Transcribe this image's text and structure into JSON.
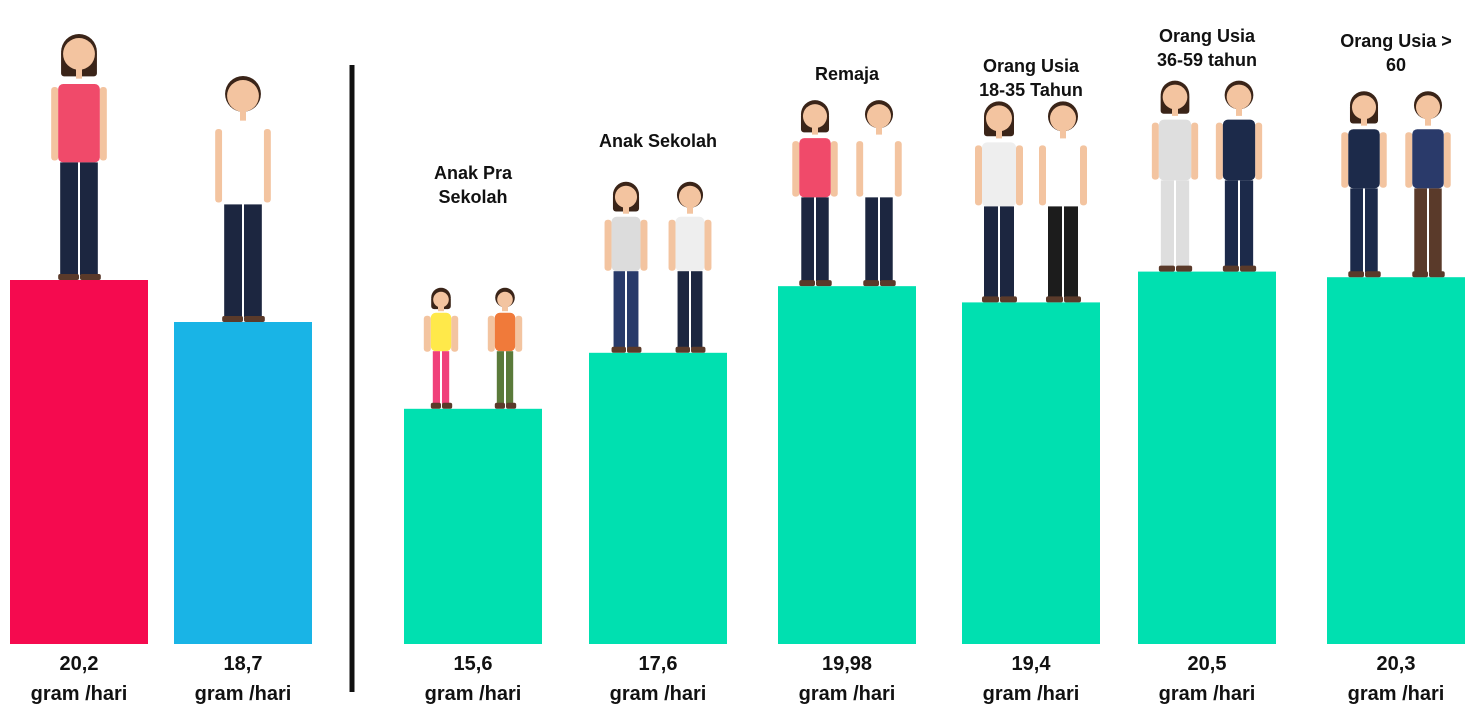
{
  "chart_data": {
    "type": "bar",
    "categories": [
      null,
      null,
      "Anak Pra Sekolah",
      "Anak Sekolah",
      "Remaja",
      "Orang Usia 18-35 Tahun",
      "Orang Usia 36-59 tahun",
      "Orang Usia > 60"
    ],
    "values": [
      20.2,
      18.7,
      15.6,
      17.6,
      19.98,
      19.4,
      20.5,
      20.3
    ],
    "value_labels": [
      "20,2",
      "18,7",
      "15,6",
      "17,6",
      "19,98",
      "19,4",
      "20,5",
      "20,3"
    ],
    "unit": "gram /hari",
    "colors": [
      "#f50a4f",
      "#19b4e6",
      "#00e0b0",
      "#00e0b0",
      "#00e0b0",
      "#00e0b0",
      "#00e0b0",
      "#00e0b0"
    ],
    "ylim": [
      7.2,
      21
    ]
  }
}
